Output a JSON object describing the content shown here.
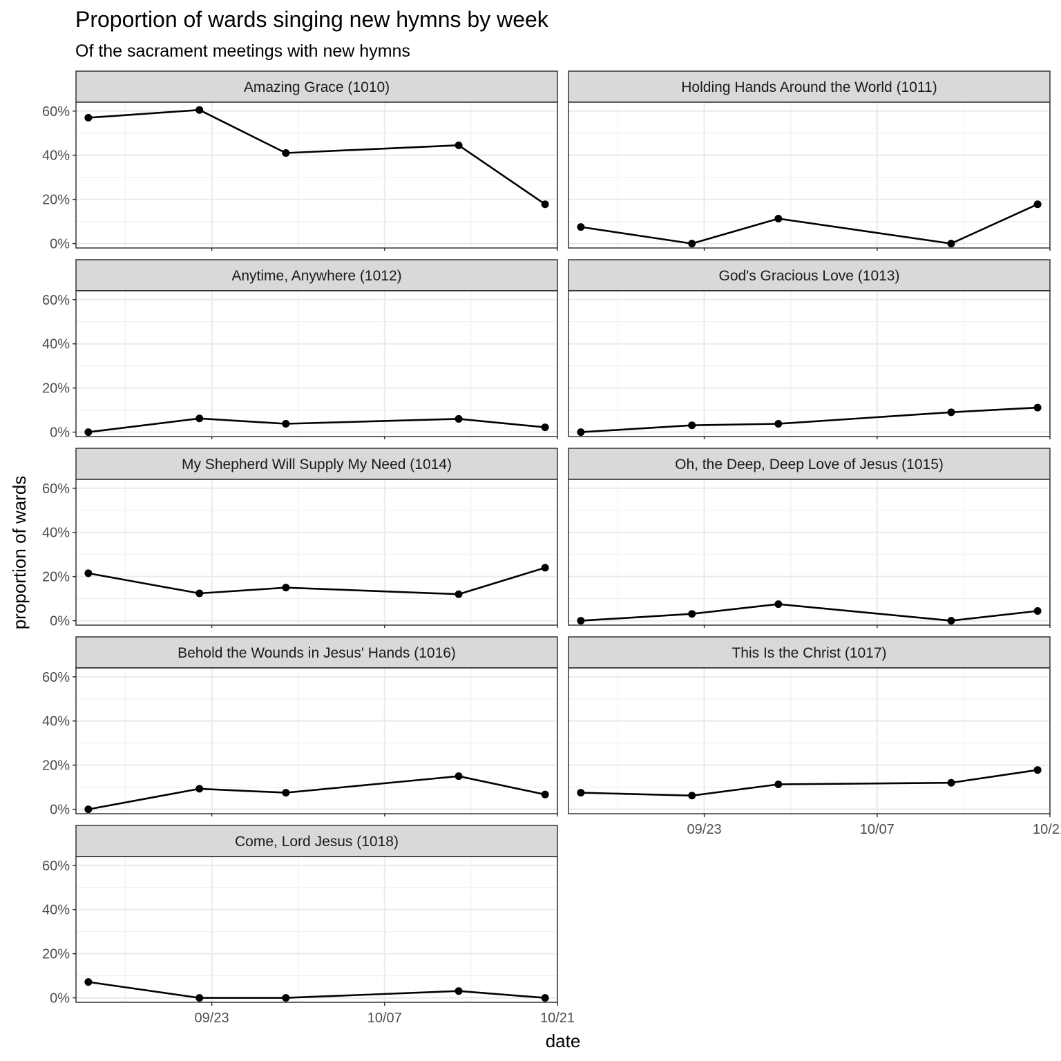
{
  "chart_data": {
    "type": "line",
    "title": "Proportion of wards singing new hymns by week",
    "subtitle": "Of the sacrament meetings with new hymns",
    "xlabel": "date",
    "ylabel": "proportion of wards",
    "x": [
      "2024-09-13",
      "2024-09-22",
      "2024-09-29",
      "2024-10-13",
      "2024-10-20"
    ],
    "x_ticks": [
      {
        "date": "2024-09-23",
        "label": "09/23"
      },
      {
        "date": "2024-10-07",
        "label": "10/07"
      },
      {
        "date": "2024-10-21",
        "label": "10/21"
      }
    ],
    "xlim": [
      "2024-09-12",
      "2024-10-21"
    ],
    "y_ticks": [
      {
        "value": 0,
        "label": "0%"
      },
      {
        "value": 0.2,
        "label": "20%"
      },
      {
        "value": 0.4,
        "label": "40%"
      },
      {
        "value": 0.6,
        "label": "60%"
      }
    ],
    "ylim": [
      -0.02,
      0.64
    ],
    "grid": true,
    "facets": [
      {
        "name": "Amazing Grace (1010)",
        "values": [
          0.57,
          0.605,
          0.41,
          0.445,
          0.178
        ]
      },
      {
        "name": "Holding Hands Around the World (1011)",
        "values": [
          0.075,
          0.0,
          0.113,
          0.0,
          0.178
        ]
      },
      {
        "name": "Anytime, Anywhere (1012)",
        "values": [
          0.0,
          0.062,
          0.038,
          0.06,
          0.022
        ]
      },
      {
        "name": "God's Gracious Love (1013)",
        "values": [
          0.0,
          0.031,
          0.038,
          0.09,
          0.111
        ]
      },
      {
        "name": "My Shepherd Will Supply My Need (1014)",
        "values": [
          0.215,
          0.124,
          0.15,
          0.12,
          0.24
        ]
      },
      {
        "name": "Oh, the Deep, Deep Love of Jesus (1015)",
        "values": [
          0.0,
          0.031,
          0.075,
          0.0,
          0.044
        ]
      },
      {
        "name": "Behold the Wounds in Jesus' Hands (1016)",
        "values": [
          0.0,
          0.093,
          0.075,
          0.15,
          0.067
        ]
      },
      {
        "name": "This Is the Christ (1017)",
        "values": [
          0.075,
          0.062,
          0.113,
          0.12,
          0.178
        ]
      },
      {
        "name": "Come, Lord Jesus (1018)",
        "values": [
          0.072,
          0.0,
          0.0,
          0.031,
          0.0
        ]
      }
    ]
  }
}
